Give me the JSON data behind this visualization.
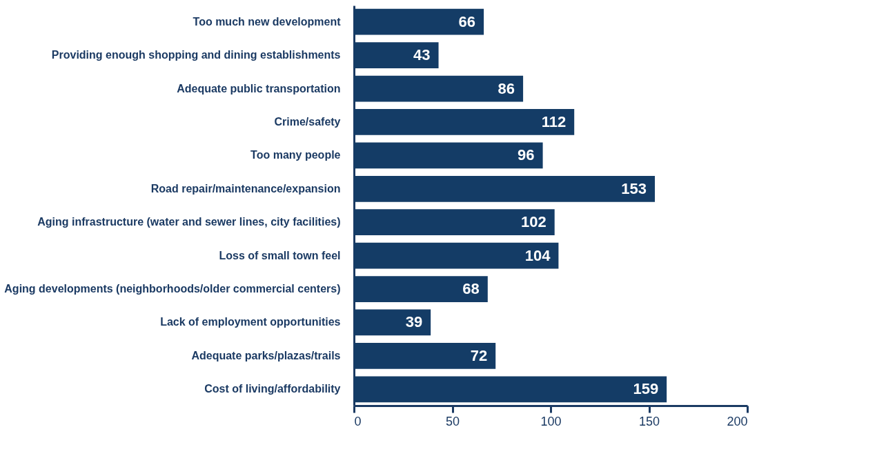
{
  "chart_data": {
    "type": "bar",
    "orientation": "horizontal",
    "categories": [
      "Too much new development",
      "Providing enough shopping and dining  establishments",
      "Adequate public transportation",
      "Crime/safety",
      "Too many people",
      "Road repair/maintenance/expansion",
      "Aging infrastructure (water and sewer lines, city facilities)",
      "Loss of small town feel",
      "Aging developments (neighborhoods/older commercial centers)",
      "Lack of employment opportunities",
      "Adequate parks/plazas/trails",
      "Cost of living/affordability"
    ],
    "values": [
      66,
      43,
      86,
      112,
      96,
      153,
      102,
      104,
      68,
      39,
      72,
      159
    ],
    "color": "#143c66",
    "xlim": [
      0,
      200
    ],
    "xticks": [
      0,
      50,
      100,
      150,
      200
    ],
    "data_labels": true
  }
}
